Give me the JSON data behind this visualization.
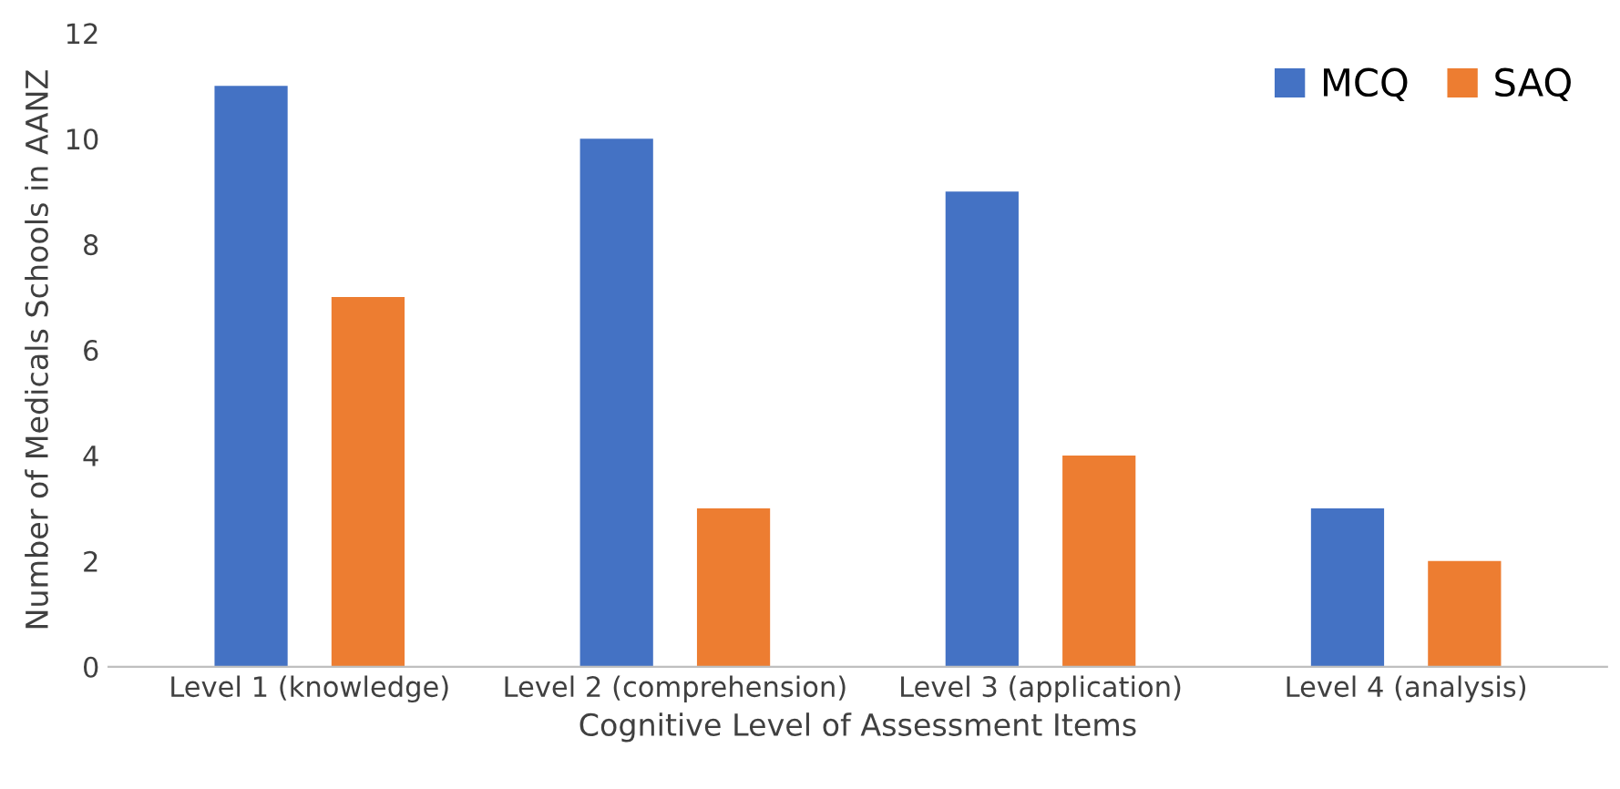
{
  "chart_data": {
    "type": "bar",
    "xlabel": "Cognitive Level of Assessment Items",
    "ylabel": "Number of Medicals Schools in AANZ",
    "categories": [
      "Level 1 (knowledge)",
      "Level 2 (comprehension)",
      "Level 3 (application)",
      "Level 4 (analysis)"
    ],
    "series": [
      {
        "name": "MCQ",
        "color": "#4472c4",
        "values": [
          11,
          10,
          9,
          3
        ]
      },
      {
        "name": "SAQ",
        "color": "#ed7d31",
        "values": [
          7,
          3,
          4,
          2
        ]
      }
    ],
    "ylim": [
      0,
      12
    ],
    "yticks": [
      0,
      2,
      4,
      6,
      8,
      10,
      12
    ],
    "grid": false,
    "legend": "top right"
  }
}
